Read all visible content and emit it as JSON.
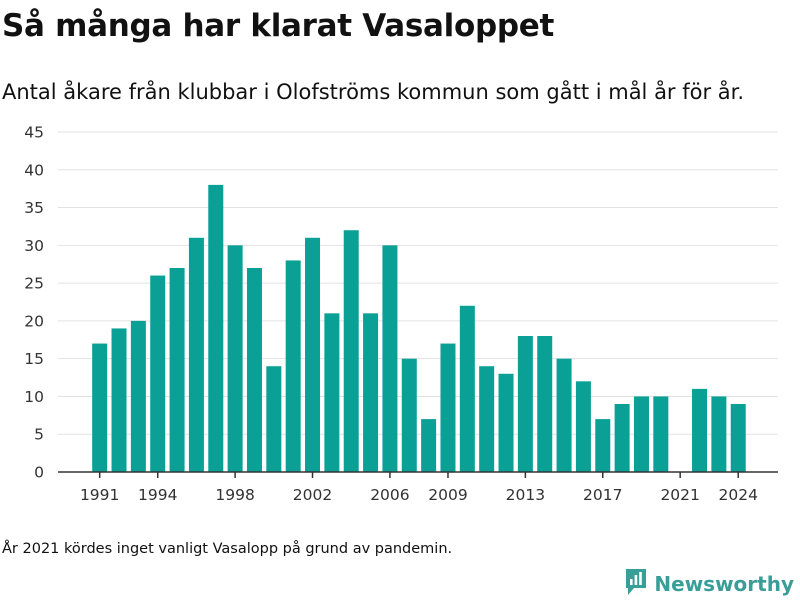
{
  "title": "Så många har klarat Vasaloppet",
  "subtitle": "Antal åkare från klubbar i Olofströms kommun som gått i mål år för år.",
  "footnote": "År 2021 kördes inget vanligt Vasalopp på grund av pandemin.",
  "brand": {
    "name": "Newsworthy",
    "color": "#3a9e98"
  },
  "colors": {
    "bar": "#0aa096",
    "grid": "#e2e2e2",
    "axis": "#333333"
  },
  "chart_data": {
    "type": "bar",
    "categories": [
      1991,
      1992,
      1993,
      1994,
      1995,
      1996,
      1997,
      1998,
      1999,
      2000,
      2001,
      2002,
      2003,
      2004,
      2005,
      2006,
      2007,
      2008,
      2009,
      2010,
      2011,
      2012,
      2013,
      2014,
      2015,
      2016,
      2017,
      2018,
      2019,
      2020,
      2021,
      2022,
      2023,
      2024
    ],
    "values": [
      17,
      19,
      20,
      26,
      27,
      31,
      38,
      30,
      27,
      14,
      28,
      31,
      21,
      32,
      21,
      30,
      15,
      7,
      17,
      22,
      14,
      13,
      18,
      18,
      15,
      12,
      7,
      9,
      10,
      10,
      0,
      11,
      10,
      9
    ],
    "x_tick_labels": [
      "1991",
      "1994",
      "1998",
      "2002",
      "2006",
      "2009",
      "2013",
      "2017",
      "2021",
      "2024"
    ],
    "y_ticks": [
      0,
      5,
      10,
      15,
      20,
      25,
      30,
      35,
      40,
      45
    ],
    "ylim": [
      0,
      45
    ],
    "grid": true,
    "xlabel": "",
    "ylabel": ""
  }
}
